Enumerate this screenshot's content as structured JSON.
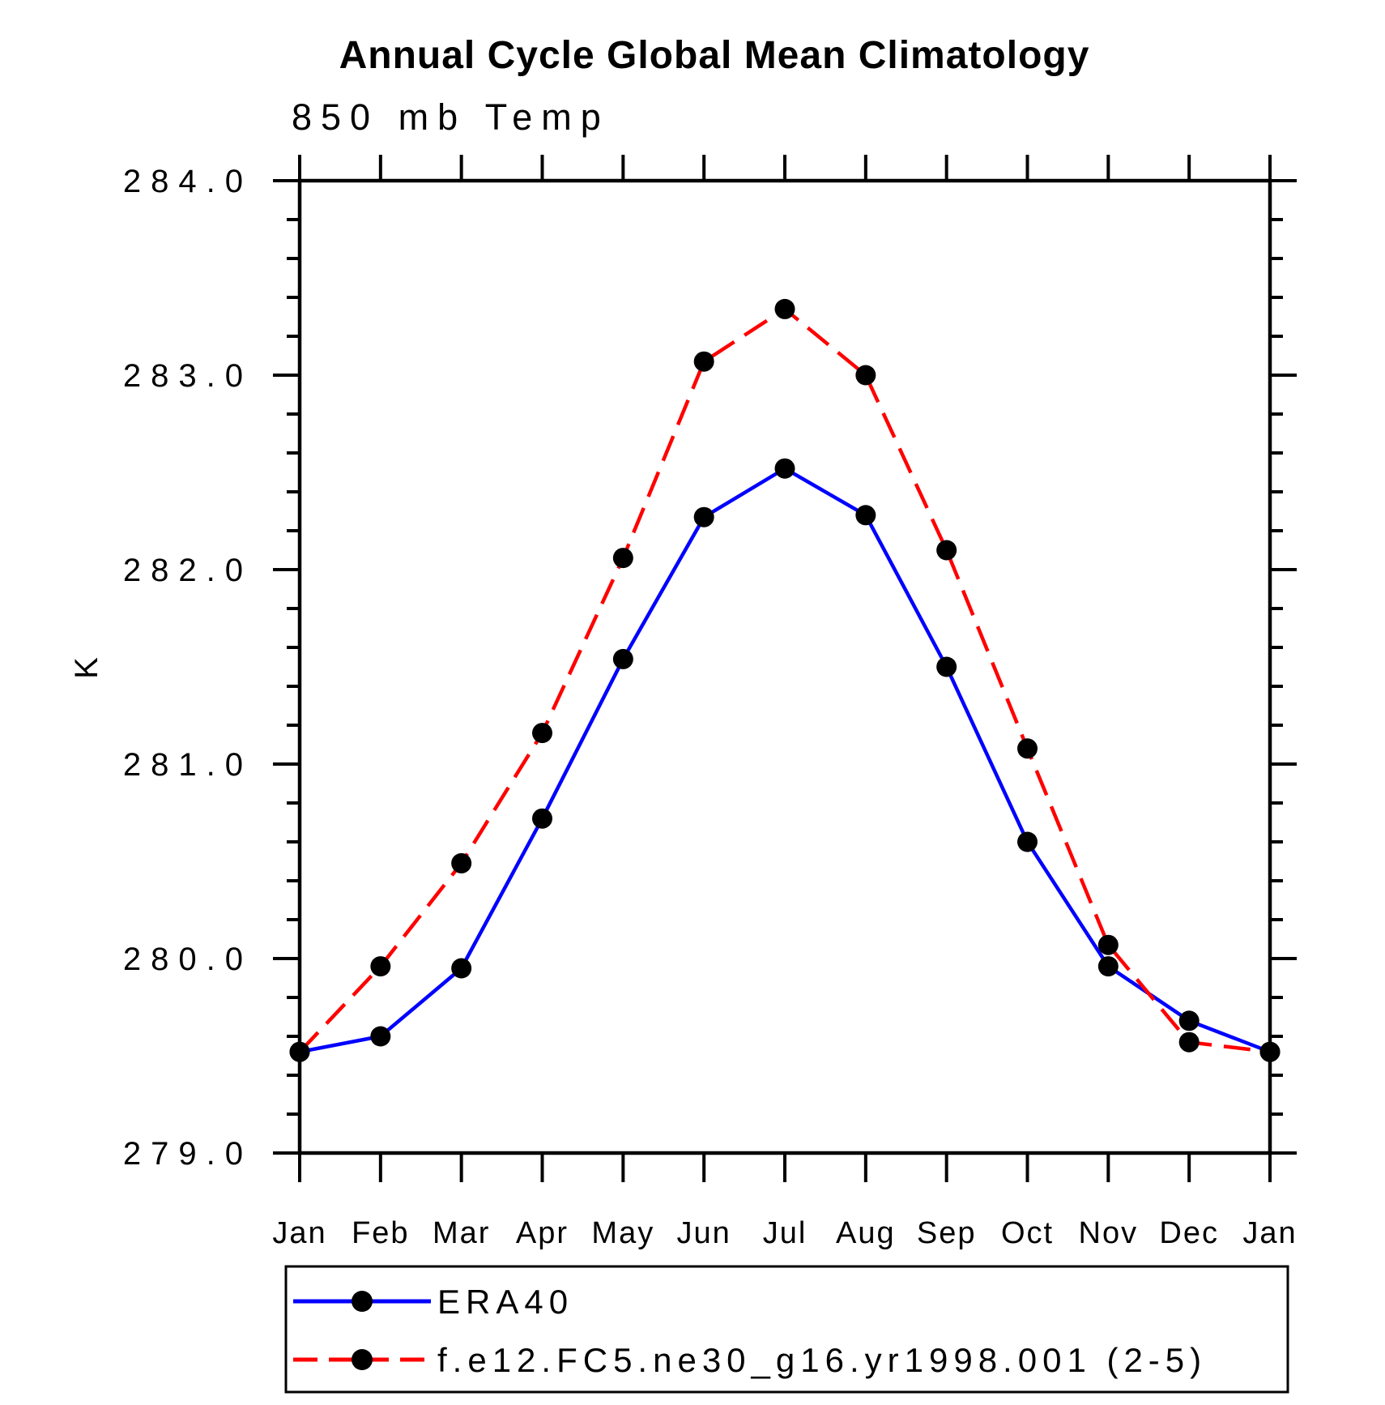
{
  "chart_data": {
    "type": "line",
    "title": "Annual Cycle Global Mean Climatology",
    "subtitle": "850 mb Temp",
    "ylabel": "K",
    "x_categories": [
      "Jan",
      "Feb",
      "Mar",
      "Apr",
      "May",
      "Jun",
      "Jul",
      "Aug",
      "Sep",
      "Oct",
      "Nov",
      "Dec",
      "Jan"
    ],
    "series": [
      {
        "name": "ERA40",
        "color": "#0000ff",
        "line_style": "solid",
        "marker": "filled-circle",
        "marker_color": "#000000",
        "values": [
          279.52,
          279.6,
          279.95,
          280.72,
          281.54,
          282.27,
          282.52,
          282.28,
          281.5,
          280.6,
          279.96,
          279.68,
          279.52
        ]
      },
      {
        "name": "f.e12.FC5.ne30_g16.yr1998.001 (2-5)",
        "color": "#ff0000",
        "line_style": "dashed",
        "marker": "filled-circle",
        "marker_color": "#000000",
        "values": [
          279.52,
          279.96,
          280.49,
          281.16,
          282.06,
          283.07,
          283.34,
          283.0,
          282.1,
          281.08,
          280.07,
          279.57,
          279.52
        ]
      }
    ],
    "ylim": [
      279.0,
      284.0
    ],
    "ytick_interval": 1.0,
    "yminor_interval": 0.2,
    "ytick_labels": [
      "279.0",
      "280.0",
      "281.0",
      "282.0",
      "283.0",
      "284.0"
    ],
    "grid": false,
    "legend_position": "bottom-left box",
    "axis_color": "#000000",
    "background_color": "#ffffff"
  }
}
